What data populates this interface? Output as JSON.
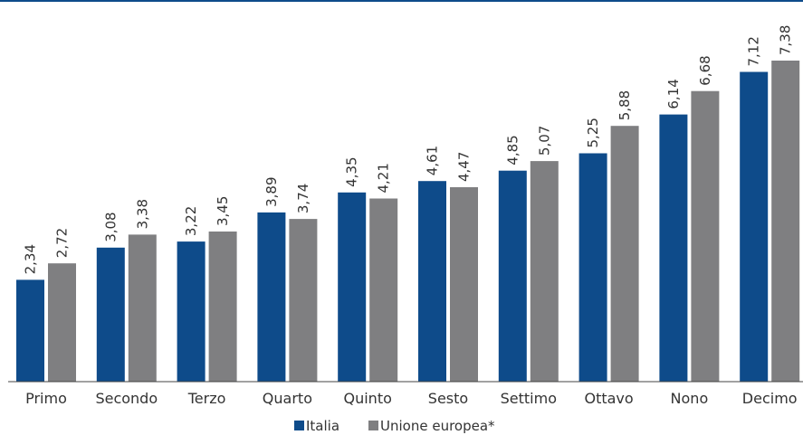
{
  "chart_data": {
    "type": "bar",
    "categories": [
      "Primo",
      "Secondo",
      "Terzo",
      "Quarto",
      "Quinto",
      "Sesto",
      "Settimo",
      "Ottavo",
      "Nono",
      "Decimo"
    ],
    "series": [
      {
        "name": "Italia",
        "color": "#0e4b8a",
        "values": [
          2.34,
          3.08,
          3.22,
          3.89,
          4.35,
          4.61,
          4.85,
          5.25,
          6.14,
          7.12
        ],
        "labels": [
          "2,34",
          "3,08",
          "3,22",
          "3,89",
          "4,35",
          "4,61",
          "4,85",
          "5,25",
          "6,14",
          "7,12"
        ]
      },
      {
        "name": "Unione europea*",
        "color": "#7f7f81",
        "values": [
          2.72,
          3.38,
          3.45,
          3.74,
          4.21,
          4.47,
          5.07,
          5.88,
          6.68,
          7.38
        ],
        "labels": [
          "2,72",
          "3,38",
          "3,45",
          "3,74",
          "4,21",
          "4,47",
          "5,07",
          "5,88",
          "6,68",
          "7,38"
        ]
      }
    ],
    "ylim": [
      0,
      7.38
    ],
    "grid": false,
    "legend_position": "bottom-center"
  }
}
